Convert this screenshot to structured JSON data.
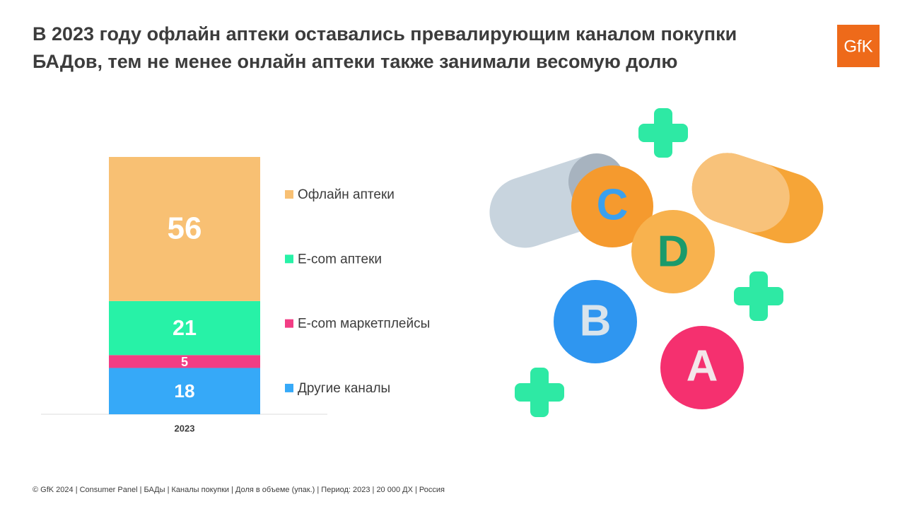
{
  "chart_data": {
    "type": "stacked_bar",
    "title": [
      "В 2023 году офлайн аптеки оставались превалирующим каналом покупки",
      "БАДов, тем не менее онлайн аптеки также занимали весомую долю"
    ],
    "categories": [
      "2023"
    ],
    "series": [
      {
        "name": "Офлайн аптеки",
        "color": "#f8c073",
        "values": [
          56
        ]
      },
      {
        "name": "E-com аптеки",
        "color": "#27f2a7",
        "values": [
          21
        ]
      },
      {
        "name": "E-com маркетплейсы",
        "color": "#f23d84",
        "values": [
          5
        ]
      },
      {
        "name": "Другие каналы",
        "color": "#36a9f8",
        "values": [
          18
        ]
      }
    ],
    "ylim": [
      0,
      100
    ]
  },
  "logo": "GfK",
  "illustration_letters": [
    "C",
    "D",
    "B",
    "A"
  ],
  "footer": "© GfK 2024 | Consumer Panel | БАДы | Каналы покупки | Доля в объеме (упак.) | Период: 2023 | 20 000 ДХ | Россия"
}
